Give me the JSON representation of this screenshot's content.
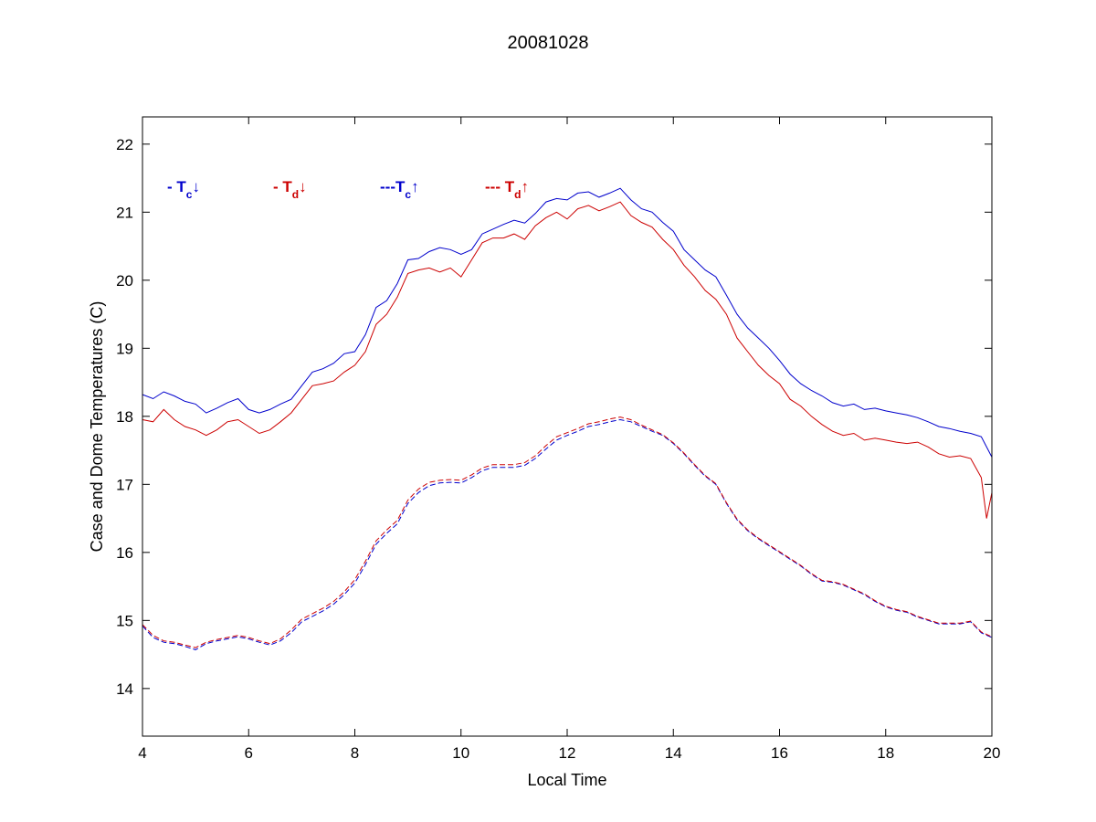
{
  "chart_data": {
    "type": "line",
    "title": "20081028",
    "xlabel": "Local Time",
    "ylabel": "Case and Dome Temperatures (C)",
    "xlim": [
      4,
      20
    ],
    "ylim": [
      13.3,
      22.4
    ],
    "xticks": [
      4,
      6,
      8,
      10,
      12,
      14,
      16,
      18,
      20
    ],
    "yticks": [
      14,
      15,
      16,
      17,
      18,
      19,
      20,
      21,
      22
    ],
    "grid": false,
    "legend_placement": "top-left",
    "series": [
      {
        "name": "- Tc↓",
        "legend_prefix": "- T",
        "legend_sub": "c",
        "legend_arrow": "↓",
        "color": "#0000cc",
        "style": "solid",
        "x": [
          4.0,
          4.2,
          4.4,
          4.6,
          4.8,
          5.0,
          5.2,
          5.4,
          5.6,
          5.8,
          6.0,
          6.2,
          6.4,
          6.6,
          6.8,
          7.0,
          7.2,
          7.4,
          7.6,
          7.8,
          8.0,
          8.2,
          8.4,
          8.6,
          8.8,
          9.0,
          9.2,
          9.4,
          9.6,
          9.8,
          10.0,
          10.2,
          10.4,
          10.6,
          10.8,
          11.0,
          11.2,
          11.4,
          11.6,
          11.8,
          12.0,
          12.2,
          12.4,
          12.6,
          12.8,
          13.0,
          13.2,
          13.4,
          13.6,
          13.8,
          14.0,
          14.2,
          14.4,
          14.6,
          14.8,
          15.0,
          15.2,
          15.4,
          15.6,
          15.8,
          16.0,
          16.2,
          16.4,
          16.6,
          16.8,
          17.0,
          17.2,
          17.4,
          17.6,
          17.8,
          18.0,
          18.2,
          18.4,
          18.6,
          18.8,
          19.0,
          19.2,
          19.4,
          19.6,
          19.8,
          20.0
        ],
        "y": [
          18.32,
          18.26,
          18.36,
          18.3,
          18.22,
          18.18,
          18.05,
          18.12,
          18.2,
          18.26,
          18.1,
          18.05,
          18.1,
          18.18,
          18.25,
          18.45,
          18.65,
          18.7,
          18.78,
          18.92,
          18.95,
          19.2,
          19.6,
          19.7,
          19.95,
          20.3,
          20.32,
          20.42,
          20.48,
          20.45,
          20.38,
          20.45,
          20.68,
          20.75,
          20.82,
          20.88,
          20.84,
          20.98,
          21.15,
          21.2,
          21.18,
          21.28,
          21.3,
          21.22,
          21.28,
          21.35,
          21.18,
          21.05,
          21.0,
          20.85,
          20.72,
          20.45,
          20.3,
          20.15,
          20.05,
          19.78,
          19.5,
          19.3,
          19.15,
          19.0,
          18.82,
          18.62,
          18.48,
          18.38,
          18.3,
          18.2,
          18.15,
          18.18,
          18.1,
          18.12,
          18.08,
          18.05,
          18.02,
          17.98,
          17.92,
          17.85,
          17.82,
          17.78,
          17.75,
          17.7,
          17.4
        ]
      },
      {
        "name": "- Td↓",
        "legend_prefix": "- T",
        "legend_sub": "d",
        "legend_arrow": "↓",
        "color": "#cc0000",
        "style": "solid",
        "x": [
          4.0,
          4.2,
          4.4,
          4.6,
          4.8,
          5.0,
          5.2,
          5.4,
          5.6,
          5.8,
          6.0,
          6.2,
          6.4,
          6.6,
          6.8,
          7.0,
          7.2,
          7.4,
          7.6,
          7.8,
          8.0,
          8.2,
          8.4,
          8.6,
          8.8,
          9.0,
          9.2,
          9.4,
          9.6,
          9.8,
          10.0,
          10.2,
          10.4,
          10.6,
          10.8,
          11.0,
          11.2,
          11.4,
          11.6,
          11.8,
          12.0,
          12.2,
          12.4,
          12.6,
          12.8,
          13.0,
          13.2,
          13.4,
          13.6,
          13.8,
          14.0,
          14.2,
          14.4,
          14.6,
          14.8,
          15.0,
          15.2,
          15.4,
          15.6,
          15.8,
          16.0,
          16.2,
          16.4,
          16.6,
          16.8,
          17.0,
          17.2,
          17.4,
          17.6,
          17.8,
          18.0,
          18.2,
          18.4,
          18.6,
          18.8,
          19.0,
          19.2,
          19.4,
          19.6,
          19.8,
          19.9,
          20.0
        ],
        "y": [
          17.95,
          17.92,
          18.1,
          17.95,
          17.85,
          17.8,
          17.72,
          17.8,
          17.92,
          17.95,
          17.85,
          17.75,
          17.8,
          17.92,
          18.05,
          18.25,
          18.45,
          18.48,
          18.52,
          18.65,
          18.75,
          18.95,
          19.35,
          19.5,
          19.75,
          20.1,
          20.15,
          20.18,
          20.12,
          20.18,
          20.05,
          20.3,
          20.55,
          20.62,
          20.62,
          20.68,
          20.6,
          20.8,
          20.92,
          21.0,
          20.9,
          21.05,
          21.1,
          21.02,
          21.08,
          21.15,
          20.95,
          20.85,
          20.78,
          20.6,
          20.45,
          20.22,
          20.05,
          19.85,
          19.72,
          19.5,
          19.15,
          18.95,
          18.75,
          18.6,
          18.48,
          18.25,
          18.15,
          18.0,
          17.88,
          17.78,
          17.72,
          17.75,
          17.65,
          17.68,
          17.65,
          17.62,
          17.6,
          17.62,
          17.55,
          17.45,
          17.4,
          17.42,
          17.38,
          17.1,
          16.5,
          16.88
        ]
      },
      {
        "name": "---Tc↑",
        "legend_prefix": "---T",
        "legend_sub": "c",
        "legend_arrow": "↑",
        "color": "#0000cc",
        "style": "dashed",
        "x": [
          4.0,
          4.2,
          4.4,
          4.6,
          4.8,
          5.0,
          5.2,
          5.4,
          5.6,
          5.8,
          6.0,
          6.2,
          6.4,
          6.6,
          6.8,
          7.0,
          7.2,
          7.4,
          7.6,
          7.8,
          8.0,
          8.2,
          8.4,
          8.6,
          8.8,
          9.0,
          9.2,
          9.4,
          9.6,
          9.8,
          10.0,
          10.2,
          10.4,
          10.6,
          10.8,
          11.0,
          11.2,
          11.4,
          11.6,
          11.8,
          12.0,
          12.2,
          12.4,
          12.6,
          12.8,
          13.0,
          13.2,
          13.4,
          13.6,
          13.8,
          14.0,
          14.2,
          14.4,
          14.6,
          14.8,
          15.0,
          15.2,
          15.4,
          15.6,
          15.8,
          16.0,
          16.2,
          16.4,
          16.6,
          16.8,
          17.0,
          17.2,
          17.4,
          17.6,
          17.8,
          18.0,
          18.2,
          18.4,
          18.6,
          18.8,
          19.0,
          19.2,
          19.4,
          19.6,
          19.8,
          20.0
        ],
        "y": [
          14.92,
          14.75,
          14.68,
          14.66,
          14.62,
          14.57,
          14.66,
          14.7,
          14.73,
          14.76,
          14.73,
          14.68,
          14.64,
          14.7,
          14.82,
          14.98,
          15.06,
          15.14,
          15.24,
          15.38,
          15.55,
          15.82,
          16.12,
          16.28,
          16.42,
          16.72,
          16.88,
          16.98,
          17.02,
          17.03,
          17.02,
          17.1,
          17.2,
          17.25,
          17.25,
          17.25,
          17.28,
          17.38,
          17.52,
          17.65,
          17.72,
          17.78,
          17.85,
          17.88,
          17.92,
          17.95,
          17.92,
          17.85,
          17.78,
          17.72,
          17.6,
          17.45,
          17.28,
          17.12,
          17.0,
          16.72,
          16.48,
          16.32,
          16.2,
          16.1,
          16.0,
          15.9,
          15.8,
          15.68,
          15.58,
          15.56,
          15.52,
          15.45,
          15.38,
          15.28,
          15.2,
          15.15,
          15.12,
          15.05,
          15.0,
          14.95,
          14.95,
          14.95,
          14.98,
          14.82,
          14.75
        ]
      },
      {
        "name": "--- Td↑",
        "legend_prefix": "--- T",
        "legend_sub": "d",
        "legend_arrow": "↑",
        "color": "#cc0000",
        "style": "dashed",
        "x": [
          4.0,
          4.2,
          4.4,
          4.6,
          4.8,
          5.0,
          5.2,
          5.4,
          5.6,
          5.8,
          6.0,
          6.2,
          6.4,
          6.6,
          6.8,
          7.0,
          7.2,
          7.4,
          7.6,
          7.8,
          8.0,
          8.2,
          8.4,
          8.6,
          8.8,
          9.0,
          9.2,
          9.4,
          9.6,
          9.8,
          10.0,
          10.2,
          10.4,
          10.6,
          10.8,
          11.0,
          11.2,
          11.4,
          11.6,
          11.8,
          12.0,
          12.2,
          12.4,
          12.6,
          12.8,
          13.0,
          13.2,
          13.4,
          13.6,
          13.8,
          14.0,
          14.2,
          14.4,
          14.6,
          14.8,
          15.0,
          15.2,
          15.4,
          15.6,
          15.8,
          16.0,
          16.2,
          16.4,
          16.6,
          16.8,
          17.0,
          17.2,
          17.4,
          17.6,
          17.8,
          18.0,
          18.2,
          18.4,
          18.6,
          18.8,
          19.0,
          19.2,
          19.4,
          19.6,
          19.8,
          20.0
        ],
        "y": [
          14.94,
          14.78,
          14.7,
          14.68,
          14.64,
          14.6,
          14.68,
          14.72,
          14.75,
          14.78,
          14.75,
          14.7,
          14.66,
          14.73,
          14.86,
          15.02,
          15.1,
          15.18,
          15.28,
          15.42,
          15.6,
          15.87,
          16.17,
          16.33,
          16.47,
          16.77,
          16.93,
          17.03,
          17.06,
          17.07,
          17.06,
          17.14,
          17.24,
          17.29,
          17.29,
          17.29,
          17.32,
          17.42,
          17.57,
          17.7,
          17.76,
          17.82,
          17.89,
          17.92,
          17.96,
          17.99,
          17.95,
          17.87,
          17.8,
          17.73,
          17.61,
          17.46,
          17.29,
          17.13,
          17.01,
          16.73,
          16.49,
          16.33,
          16.21,
          16.11,
          16.01,
          15.91,
          15.81,
          15.69,
          15.59,
          15.57,
          15.53,
          15.46,
          15.39,
          15.29,
          15.21,
          15.16,
          15.13,
          15.06,
          15.01,
          14.96,
          14.96,
          14.96,
          14.99,
          14.83,
          14.76
        ]
      }
    ]
  }
}
